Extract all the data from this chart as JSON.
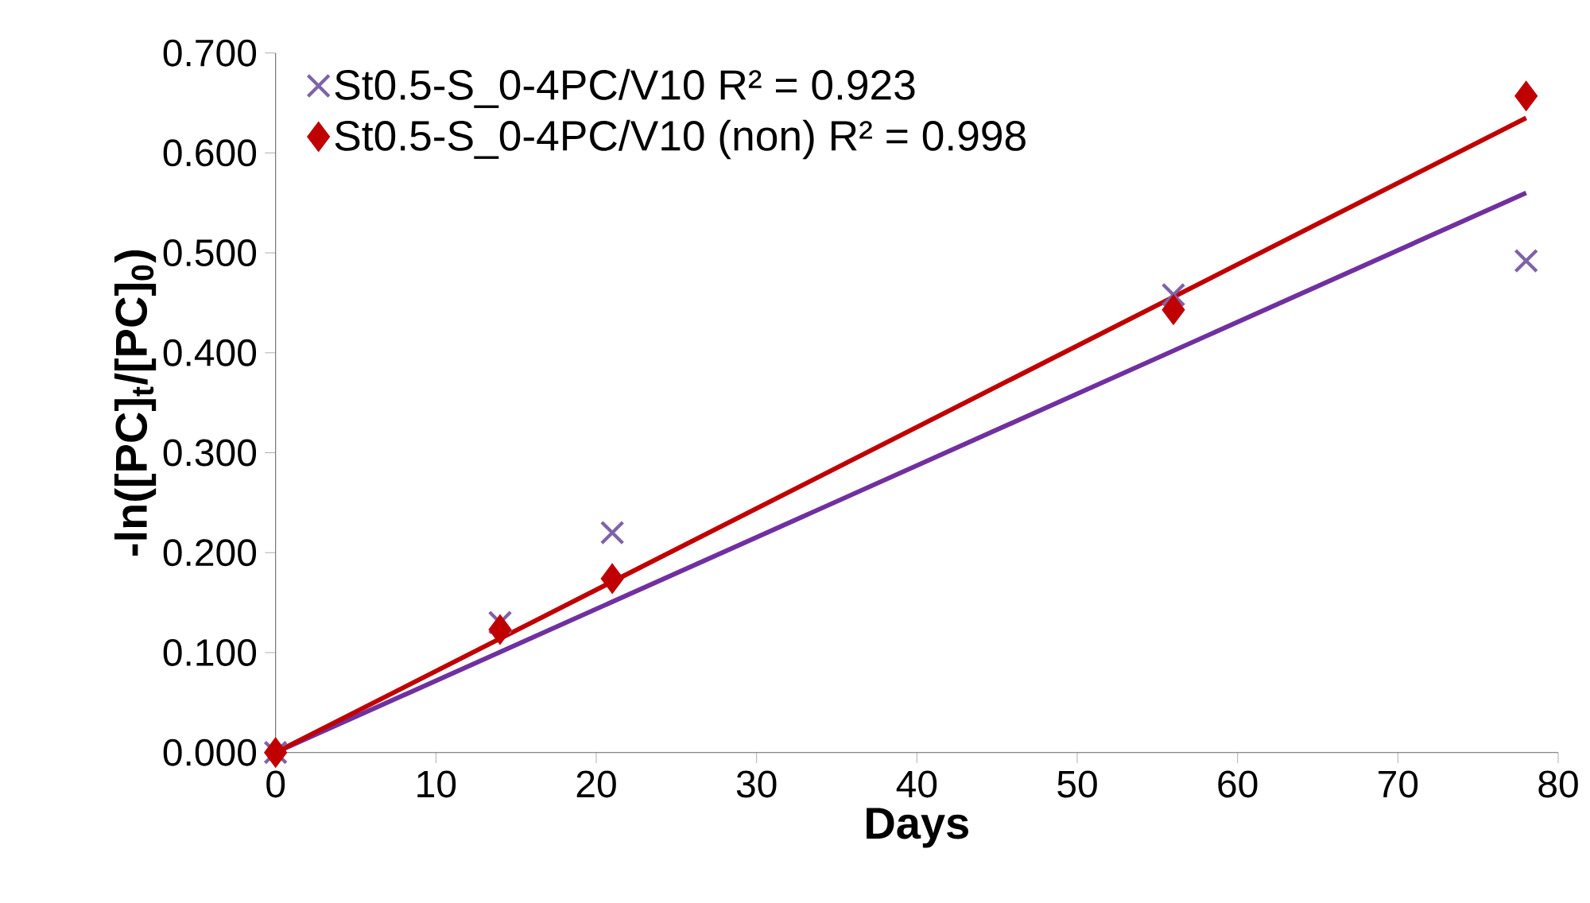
{
  "chart_data": {
    "type": "scatter",
    "xlabel": "Days",
    "ylabel": "-ln([PC]$_{t}$/[PC]$_{0}$)",
    "xlim": [
      0,
      80
    ],
    "xticks": [
      0,
      10,
      20,
      30,
      40,
      50,
      60,
      70,
      80
    ],
    "ylim": [
      0,
      0.7
    ],
    "yticks": [
      {
        "value": 0,
        "label": "0.000"
      },
      {
        "value": 0.1,
        "label": "0.100"
      },
      {
        "value": 0.2,
        "label": "0.200"
      },
      {
        "value": 0.3,
        "label": "0.300"
      },
      {
        "value": 0.4,
        "label": "0.400"
      },
      {
        "value": 0.5,
        "label": "0.500"
      },
      {
        "value": 0.6,
        "label": "0.600"
      },
      {
        "value": 0.7,
        "label": "0.700"
      }
    ],
    "grid": false,
    "legend": "top left",
    "series": [
      {
        "name": "St0.5-S_0-4PC/V10   R² = 0.923",
        "marker": "cross",
        "color": "#7f63a8",
        "x": [
          0,
          14,
          21,
          56,
          78
        ],
        "values": [
          0,
          0.13,
          0.22,
          0.458,
          0.492
        ]
      },
      {
        "name": "St0.5-S_0-4PC/V10 (non)  R² = 0.998",
        "marker": "diamond",
        "color": "#c00000",
        "x": [
          0,
          14,
          21,
          56,
          78
        ],
        "values": [
          0,
          0.123,
          0.174,
          0.443,
          0.657
        ]
      },
      {
        "type": "line",
        "marker": "none",
        "color": "#7030a0",
        "x": [
          0,
          78
        ],
        "values": [
          0,
          0.56
        ]
      },
      {
        "type": "line",
        "marker": "none",
        "color": "#c00000",
        "x": [
          0,
          78
        ],
        "values": [
          0,
          0.635
        ]
      }
    ]
  }
}
